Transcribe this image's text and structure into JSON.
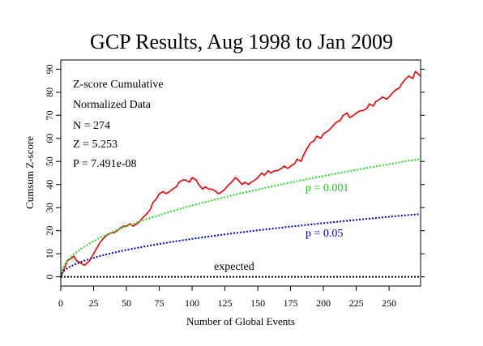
{
  "chart_data": {
    "type": "line",
    "title": "GCP Results, Aug 1998 to Jan 2009",
    "xlabel": "Number of Global Events",
    "ylabel": "Cumsum Z-score",
    "xlim": [
      0,
      274
    ],
    "ylim": [
      -4,
      94
    ],
    "x_ticks": [
      0,
      25,
      50,
      75,
      100,
      125,
      150,
      175,
      200,
      225,
      250
    ],
    "y_ticks": [
      0,
      10,
      20,
      30,
      40,
      50,
      60,
      70,
      80,
      90
    ],
    "grid": false,
    "stats": [
      "Z-score Cumulative",
      "Normalized Data",
      "N = 274",
      "Z = 5.253",
      "P = 7.491e-08"
    ],
    "series": [
      {
        "color": "#ee0000",
        "style": "solid",
        "x": [
          0,
          3,
          5,
          8,
          10,
          12,
          15,
          18,
          20,
          22,
          25,
          28,
          30,
          33,
          35,
          38,
          40,
          43,
          45,
          48,
          50,
          53,
          55,
          58,
          60,
          63,
          65,
          68,
          70,
          73,
          75,
          78,
          80,
          83,
          85,
          88,
          90,
          93,
          95,
          98,
          100,
          103,
          105,
          108,
          110,
          113,
          115,
          118,
          120,
          123,
          125,
          128,
          130,
          133,
          135,
          138,
          140,
          143,
          145,
          148,
          150,
          153,
          155,
          158,
          160,
          163,
          165,
          168,
          170,
          173,
          175,
          178,
          180,
          183,
          185,
          188,
          190,
          193,
          195,
          198,
          200,
          203,
          205,
          208,
          210,
          213,
          215,
          218,
          220,
          223,
          225,
          228,
          230,
          233,
          235,
          238,
          240,
          243,
          245,
          248,
          250,
          253,
          255,
          258,
          260,
          263,
          265,
          268,
          270,
          274
        ],
        "values": [
          0,
          4,
          7,
          8,
          9,
          7,
          6,
          5,
          6,
          7,
          10,
          13,
          15,
          17,
          18,
          19,
          19,
          20,
          21,
          22,
          22,
          23,
          22,
          23,
          24,
          26,
          27,
          29,
          32,
          34,
          36,
          37,
          36,
          37,
          38,
          39,
          41,
          42,
          42,
          41,
          43,
          42,
          40,
          38,
          39,
          38,
          38,
          37,
          36,
          37,
          38,
          40,
          41,
          43,
          42,
          40,
          41,
          40,
          41,
          42,
          43,
          45,
          44,
          46,
          45,
          46,
          46,
          47,
          48,
          47,
          48,
          49,
          51,
          50,
          53,
          56,
          58,
          59,
          61,
          60,
          62,
          63,
          64,
          66,
          67,
          68,
          70,
          71,
          69,
          70,
          71,
          72,
          72,
          73,
          75,
          74,
          76,
          77,
          78,
          77,
          78,
          80,
          81,
          82,
          84,
          86,
          87,
          86,
          89,
          87
        ]
      },
      {
        "name": "p = 0.001",
        "color": "#22dd22",
        "style": "dotted",
        "formula": "3.09 * sqrt(x)"
      },
      {
        "name": "p = 0.05",
        "color": "#0000bb",
        "style": "dotted",
        "formula": "1.645 * sqrt(x)"
      },
      {
        "name": "expected",
        "color": "#000000",
        "style": "dotted",
        "formula": "0"
      }
    ]
  }
}
